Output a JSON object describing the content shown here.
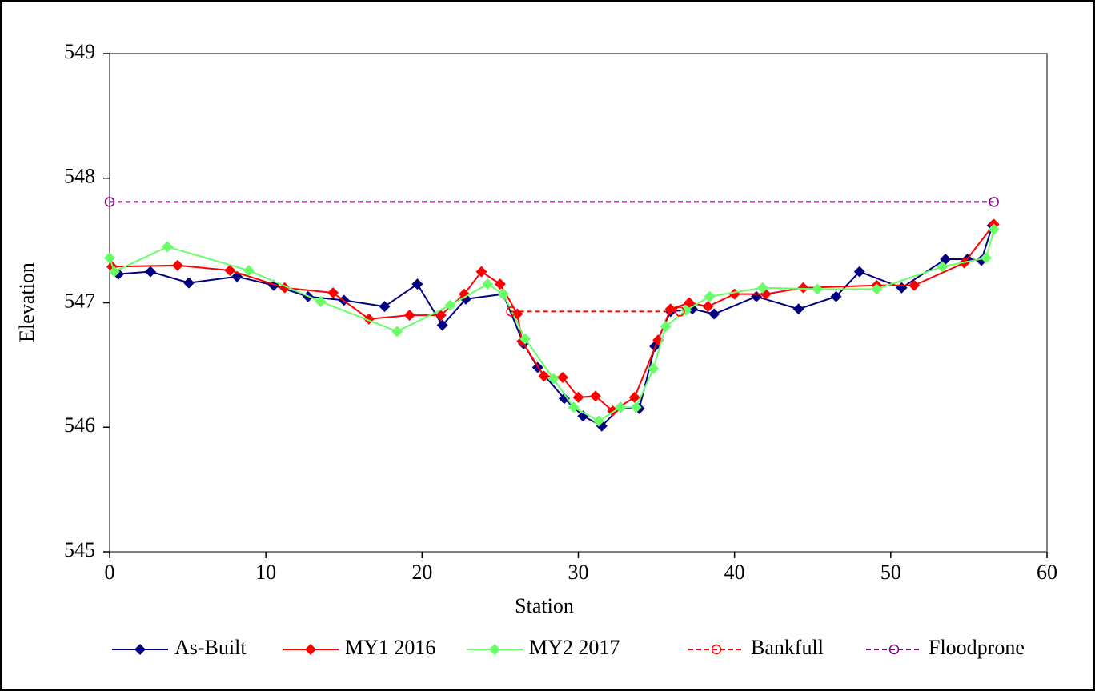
{
  "chart_data": {
    "type": "line",
    "xlabel": "Station",
    "ylabel": "Elevation",
    "xlim": [
      0,
      60
    ],
    "xticks": [
      0,
      10,
      20,
      30,
      40,
      50,
      60
    ],
    "ylim": [
      545,
      549
    ],
    "yticks": [
      545,
      546,
      547,
      548,
      549
    ],
    "grid": false,
    "legend": "bottom",
    "series": [
      {
        "name": "As-Built",
        "color": "#000080",
        "marker": "diamond",
        "dashed": false,
        "x": [
          0.56,
          2.61,
          5.07,
          8.15,
          10.5,
          12.7,
          15.0,
          17.6,
          19.7,
          21.3,
          22.8,
          25.2,
          26.5,
          27.4,
          29.1,
          30.3,
          31.5,
          32.7,
          33.9,
          34.9,
          35.9,
          37.3,
          38.7,
          41.4,
          44.1,
          46.5,
          48.0,
          50.7,
          53.5,
          54.9,
          55.8,
          56.5
        ],
        "values": [
          547.23,
          547.25,
          547.16,
          547.21,
          547.14,
          547.05,
          547.02,
          546.97,
          547.15,
          546.82,
          547.03,
          547.07,
          546.67,
          546.48,
          546.23,
          546.09,
          546.01,
          546.16,
          546.15,
          546.65,
          546.93,
          546.95,
          546.91,
          547.05,
          546.95,
          547.05,
          547.25,
          547.12,
          547.35,
          547.35,
          547.34,
          547.62
        ]
      },
      {
        "name": "MY1 2016",
        "color": "#ff0000",
        "marker": "diamond",
        "dashed": false,
        "x": [
          0.15,
          4.35,
          7.7,
          11.2,
          14.3,
          16.6,
          19.2,
          21.2,
          22.7,
          23.8,
          25.0,
          26.1,
          26.4,
          27.8,
          29.0,
          30.0,
          31.1,
          32.2,
          33.6,
          35.1,
          35.9,
          37.1,
          38.3,
          40.0,
          42.0,
          44.4,
          49.1,
          51.5,
          54.7,
          56.6
        ],
        "values": [
          547.29,
          547.3,
          547.26,
          547.12,
          547.08,
          546.87,
          546.9,
          546.9,
          547.07,
          547.25,
          547.15,
          546.91,
          546.69,
          546.41,
          546.4,
          546.24,
          546.25,
          546.13,
          546.24,
          546.7,
          546.95,
          547.0,
          546.97,
          547.07,
          547.07,
          547.12,
          547.14,
          547.14,
          547.32,
          547.63
        ]
      },
      {
        "name": "MY2 2017",
        "color": "#66ff66",
        "marker": "diamond",
        "dashed": false,
        "x": [
          0,
          0.3,
          3.7,
          8.9,
          13.5,
          18.4,
          21.8,
          24.2,
          25.2,
          26.6,
          28.4,
          29.7,
          31.3,
          32.7,
          33.7,
          34.8,
          35.6,
          36.9,
          38.4,
          41.8,
          45.3,
          49.1,
          53.3,
          56.1,
          56.6
        ],
        "values": [
          547.36,
          547.25,
          547.45,
          547.26,
          547.01,
          546.77,
          546.98,
          547.15,
          547.07,
          546.71,
          546.39,
          546.16,
          546.05,
          546.16,
          546.16,
          546.47,
          546.81,
          546.94,
          547.05,
          547.12,
          547.11,
          547.11,
          547.29,
          547.36,
          547.59
        ]
      },
      {
        "name": "Bankfull",
        "color": "#ff0000",
        "marker": "circle",
        "dashed": true,
        "x": [
          25.7,
          36.5
        ],
        "values": [
          546.93,
          546.93
        ]
      },
      {
        "name": "Floodprone",
        "color": "#800080",
        "marker": "circle",
        "dashed": true,
        "x": [
          0,
          56.6
        ],
        "values": [
          547.81,
          547.81
        ]
      }
    ]
  }
}
